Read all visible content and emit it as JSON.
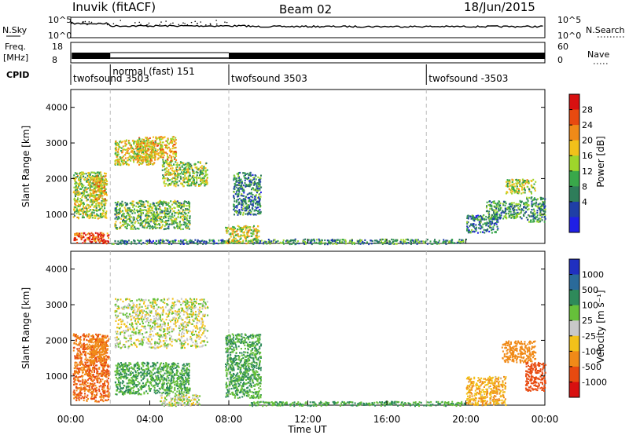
{
  "header": {
    "station": "Inuvik (fitACF)",
    "beam": "Beam 02",
    "date": "18/Jun/2015"
  },
  "noise_panel": {
    "left_label": "N.Sky",
    "right_label": "N.Search",
    "y_ticks": [
      "10^5",
      "10^0"
    ],
    "y_ticks_right": [
      "10^5",
      "10^0"
    ]
  },
  "freq_panel": {
    "left_label_1": "Freq.",
    "left_label_2": "[MHz]",
    "left_ticks": [
      "18",
      "8"
    ],
    "right_label": "Nave",
    "right_ticks": [
      "60",
      "0"
    ]
  },
  "cpid": {
    "label": "CPID",
    "segments": [
      {
        "label": "twofsound 3503",
        "start": 0.0,
        "end": 2.0
      },
      {
        "label": "normal (fast) 151",
        "start": 2.0,
        "end": 8.0
      },
      {
        "label": "twofsound 3503",
        "start": 8.0,
        "end": 18.0
      },
      {
        "label": "twofsound -3503",
        "start": 18.0,
        "end": 24.0
      }
    ]
  },
  "x_axis": {
    "label": "Time UT",
    "ticks": [
      "00:00",
      "04:00",
      "08:00",
      "12:00",
      "16:00",
      "20:00",
      "00:00"
    ],
    "tick_hours": [
      0,
      4,
      8,
      12,
      16,
      20,
      24
    ]
  },
  "power_panel": {
    "ylabel": "Slant Range [km]",
    "yticks": [
      "4000",
      "3000",
      "2000",
      "1000"
    ],
    "colorbar_label": "Power [dB]",
    "colorbar_ticks": [
      "28",
      "24",
      "20",
      "16",
      "12",
      "8",
      "4"
    ],
    "colors": [
      "#1f1fe6",
      "#1f3fa6",
      "#2e7d5a",
      "#39a84a",
      "#9ed52b",
      "#f2c11a",
      "#f08a18",
      "#e84a10",
      "#d81010"
    ]
  },
  "velocity_panel": {
    "ylabel": "Slant Range [km]",
    "yticks": [
      "4000",
      "3000",
      "2000",
      "1000"
    ],
    "colorbar_label": "Velocity [m s⁻¹]",
    "colorbar_ticks": [
      "1000",
      "500",
      "100",
      "25",
      "-25",
      "-100",
      "-500",
      "-1000"
    ],
    "colors": [
      "#2030c0",
      "#2a6a9a",
      "#2e8a5a",
      "#66c03a",
      "#c8c8c8",
      "#f2c11a",
      "#f08a18",
      "#e84a10",
      "#d81010"
    ]
  },
  "chart_data": {
    "type": "heatmap",
    "time_range_hours": [
      0,
      24
    ],
    "range_km": [
      180,
      4500
    ],
    "mode_change_hours": [
      2,
      8,
      18
    ],
    "power_clusters_db": [
      {
        "t": [
          0.1,
          1.9
        ],
        "r": [
          200,
          500
        ],
        "power": 24
      },
      {
        "t": [
          0.1,
          1.8
        ],
        "r": [
          900,
          2200
        ],
        "power": 14
      },
      {
        "t": [
          0.9,
          1.8
        ],
        "r": [
          1400,
          2100
        ],
        "power": 18
      },
      {
        "t": [
          2.2,
          4.2
        ],
        "r": [
          2400,
          3100
        ],
        "power": 16
      },
      {
        "t": [
          3.3,
          5.3
        ],
        "r": [
          2500,
          3200
        ],
        "power": 18
      },
      {
        "t": [
          4.6,
          6.9
        ],
        "r": [
          1800,
          2500
        ],
        "power": 14
      },
      {
        "t": [
          2.2,
          6.0
        ],
        "r": [
          600,
          1400
        ],
        "power": 12
      },
      {
        "t": [
          2.0,
          8.0
        ],
        "r": [
          180,
          300
        ],
        "power": 8
      },
      {
        "t": [
          7.8,
          9.5
        ],
        "r": [
          200,
          700
        ],
        "power": 16
      },
      {
        "t": [
          8.2,
          9.6
        ],
        "r": [
          1000,
          2200
        ],
        "power": 8
      },
      {
        "t": [
          9.0,
          20.0
        ],
        "r": [
          180,
          320
        ],
        "power": 10
      },
      {
        "t": [
          20.0,
          21.6
        ],
        "r": [
          500,
          1000
        ],
        "power": 8
      },
      {
        "t": [
          21.0,
          23.0
        ],
        "r": [
          900,
          1400
        ],
        "power": 10
      },
      {
        "t": [
          22.0,
          23.5
        ],
        "r": [
          1600,
          2000
        ],
        "power": 14
      },
      {
        "t": [
          23.0,
          24.0
        ],
        "r": [
          800,
          1500
        ],
        "power": 10
      }
    ],
    "velocity_clusters_ms": [
      {
        "t": [
          0.1,
          1.9
        ],
        "r": [
          300,
          2200
        ],
        "velocity": -300
      },
      {
        "t": [
          0.9,
          1.8
        ],
        "r": [
          1400,
          2100
        ],
        "velocity": -100
      },
      {
        "t": [
          2.2,
          6.9
        ],
        "r": [
          1800,
          3200
        ],
        "velocity": 0
      },
      {
        "t": [
          2.2,
          6.0
        ],
        "r": [
          500,
          1400
        ],
        "velocity": 60
      },
      {
        "t": [
          4.5,
          6.5
        ],
        "r": [
          180,
          500
        ],
        "velocity": 0
      },
      {
        "t": [
          7.8,
          9.6
        ],
        "r": [
          400,
          2200
        ],
        "velocity": 60
      },
      {
        "t": [
          9.0,
          20.0
        ],
        "r": [
          180,
          300
        ],
        "velocity": 60
      },
      {
        "t": [
          20.0,
          22.0
        ],
        "r": [
          200,
          1000
        ],
        "velocity": -50
      },
      {
        "t": [
          21.8,
          23.5
        ],
        "r": [
          1400,
          2000
        ],
        "velocity": -150
      },
      {
        "t": [
          23.0,
          24.0
        ],
        "r": [
          600,
          1400
        ],
        "velocity": -400
      }
    ]
  }
}
